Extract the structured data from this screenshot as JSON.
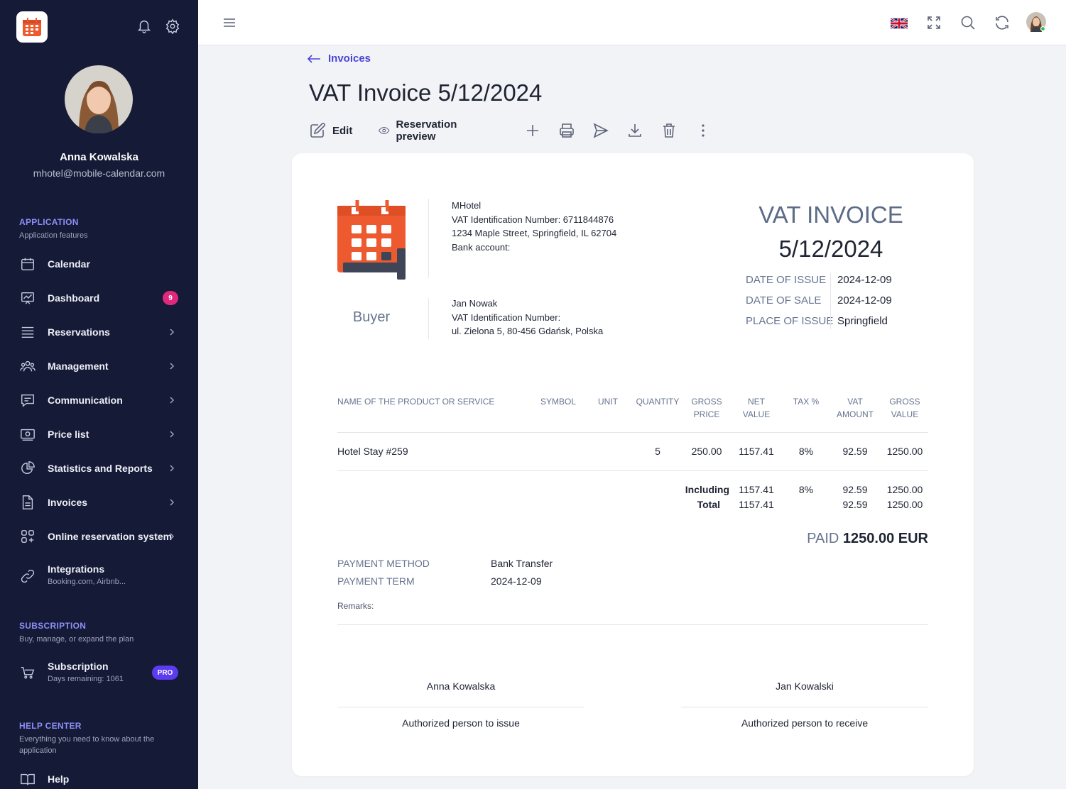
{
  "sidebar": {
    "user": {
      "name": "Anna Kowalska",
      "email": "mhotel@mobile-calendar.com"
    },
    "sections": {
      "application": {
        "title": "APPLICATION",
        "subtitle": "Application features"
      },
      "subscription": {
        "title": "SUBSCRIPTION",
        "subtitle": "Buy, manage, or expand the plan"
      },
      "help": {
        "title": "HELP CENTER",
        "subtitle": "Everything you need to know about the application"
      }
    },
    "items": [
      {
        "label": "Calendar",
        "icon": "calendar-icon"
      },
      {
        "label": "Dashboard",
        "icon": "dashboard-icon",
        "badge": "9"
      },
      {
        "label": "Reservations",
        "icon": "list-icon"
      },
      {
        "label": "Management",
        "icon": "users-icon"
      },
      {
        "label": "Communication",
        "icon": "chat-icon"
      },
      {
        "label": "Price list",
        "icon": "money-icon"
      },
      {
        "label": "Statistics and Reports",
        "icon": "pie-chart-icon"
      },
      {
        "label": "Invoices",
        "icon": "document-icon"
      },
      {
        "label": "Online reservation system",
        "icon": "apps-icon"
      },
      {
        "label": "Integrations",
        "sub": "Booking.com, Airbnb...",
        "icon": "link-icon"
      }
    ],
    "subscription": {
      "label": "Subscription",
      "sub": "Days remaining: 1061",
      "badge": "PRO"
    },
    "help": {
      "label": "Help"
    }
  },
  "breadcrumb": {
    "label": "Invoices"
  },
  "page_title": "VAT Invoice 5/12/2024",
  "toolbar": {
    "edit": "Edit",
    "preview": "Reservation preview"
  },
  "invoice": {
    "seller": {
      "name": "MHotel",
      "vat": "VAT Identification Number: 6711844876",
      "address": "1234 Maple Street, Springfield, IL 62704",
      "bank": "Bank account:"
    },
    "buyer_label": "Buyer",
    "buyer": {
      "name": "Jan Nowak",
      "vat": "VAT Identification Number:",
      "address": "ul. Zielona 5, 80-456 Gdańsk, Polska"
    },
    "heading": "VAT INVOICE",
    "number": "5/12/2024",
    "meta": [
      {
        "key": "DATE OF ISSUE",
        "value": "2024-12-09"
      },
      {
        "key": "DATE OF SALE",
        "value": "2024-12-09"
      },
      {
        "key": "PLACE OF ISSUE",
        "value": "Springfield"
      }
    ],
    "columns": {
      "name": "NAME OF THE PRODUCT OR SERVICE",
      "symbol": "SYMBOL",
      "unit": "UNIT",
      "quantity": "QUANTITY",
      "gross_price_1": "GROSS",
      "gross_price_2": "PRICE",
      "net_value_1": "NET",
      "net_value_2": "VALUE",
      "tax": "TAX %",
      "vat_amount_1": "VAT",
      "vat_amount_2": "AMOUNT",
      "gross_value_1": "GROSS",
      "gross_value_2": "VALUE"
    },
    "row": {
      "name": "Hotel Stay #259",
      "quantity": "5",
      "gross_price": "250.00",
      "net_value": "1157.41",
      "tax": "8%",
      "vat_amount": "92.59",
      "gross_value": "1250.00"
    },
    "including": {
      "label": "Including",
      "net_value": "1157.41",
      "tax": "8%",
      "vat_amount": "92.59",
      "gross_value": "1250.00"
    },
    "total": {
      "label": "Total",
      "net_value": "1157.41",
      "vat_amount": "92.59",
      "gross_value": "1250.00"
    },
    "paid_label": "PAID",
    "paid_amount": "1250.00 EUR",
    "payment": [
      {
        "key": "PAYMENT METHOD",
        "value": "Bank Transfer"
      },
      {
        "key": "PAYMENT TERM",
        "value": "2024-12-09"
      }
    ],
    "remarks": "Remarks:",
    "signatures": [
      {
        "name": "Anna Kowalska",
        "role": "Authorized person to issue"
      },
      {
        "name": "Jan Kowalski",
        "role": "Authorized person to receive"
      }
    ]
  },
  "colors": {
    "sidebar": "#151a36",
    "accent": "#4a43d6",
    "badge": "#e0287c",
    "pro": "#5b3cf0",
    "logo_orange": "#ee5a2f"
  }
}
